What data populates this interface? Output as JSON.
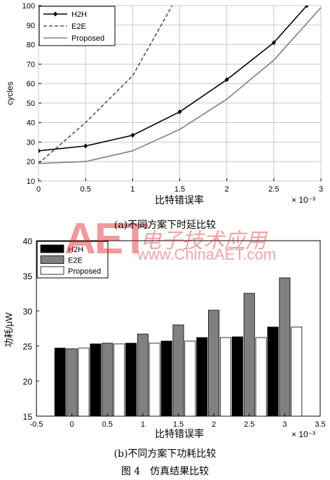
{
  "chart_data": [
    {
      "type": "line",
      "title": "",
      "xlabel": "比特错误率",
      "ylabel": "cycles",
      "xlim": [
        0,
        3
      ],
      "ylim": [
        10,
        100
      ],
      "x_ticks": [
        "0",
        "0.5",
        "1",
        "1.5",
        "2",
        "2.5",
        "3"
      ],
      "y_ticks": [
        "10",
        "20",
        "30",
        "40",
        "50",
        "60",
        "70",
        "80",
        "90",
        "100"
      ],
      "x_multiplier": "× 10⁻³",
      "grid": true,
      "legend_position": "top-left",
      "series": [
        {
          "name": "H2H",
          "style": "solid-diamond",
          "color": "#000000",
          "points": [
            [
              0,
              25.5
            ],
            [
              0.5,
              28
            ],
            [
              1,
              33.5
            ],
            [
              1.5,
              45.5
            ],
            [
              2,
              62
            ],
            [
              2.5,
              81
            ],
            [
              2.85,
              100
            ]
          ]
        },
        {
          "name": "E2E",
          "style": "dashed",
          "color": "#555555",
          "points": [
            [
              0,
              19
            ],
            [
              0.5,
              40
            ],
            [
              1,
              64
            ],
            [
              1.42,
              100
            ]
          ]
        },
        {
          "name": "Proposed",
          "style": "solid",
          "color": "#808080",
          "points": [
            [
              0,
              19
            ],
            [
              0.5,
              20
            ],
            [
              1,
              25.5
            ],
            [
              1.5,
              36.5
            ],
            [
              2,
              52
            ],
            [
              2.5,
              72
            ],
            [
              3,
              99
            ]
          ]
        }
      ],
      "caption": "(a)不同方案下时延比较"
    },
    {
      "type": "bar",
      "title": "",
      "xlabel": "比特错误率",
      "ylabel": "功耗/μW",
      "xlim": [
        -0.5,
        3.5
      ],
      "ylim": [
        15,
        40
      ],
      "x_ticks": [
        "-0.5",
        "0",
        "0.5",
        "1",
        "1.5",
        "2",
        "2.5",
        "3",
        "3.5"
      ],
      "y_ticks": [
        "15",
        "20",
        "25",
        "30",
        "35",
        "40"
      ],
      "x_multiplier": "× 10⁻³",
      "grid": false,
      "legend_position": "top-left",
      "categories": [
        0,
        0.5,
        1,
        1.5,
        2,
        2.5,
        3
      ],
      "series": [
        {
          "name": "H2H",
          "color": "#000000",
          "values": [
            24.7,
            25.3,
            25.4,
            25.7,
            26.2,
            26.3,
            27.7
          ]
        },
        {
          "name": "E2E",
          "color": "#808080",
          "values": [
            24.6,
            25.4,
            26.7,
            28.0,
            30.1,
            32.5,
            34.7
          ]
        },
        {
          "name": "Proposed",
          "color": "#ffffff",
          "values": [
            24.7,
            25.3,
            25.4,
            25.7,
            26.2,
            26.2,
            27.7
          ]
        }
      ],
      "caption": "(b)不同方案下功耗比较"
    }
  ],
  "figure_caption": "图 4　仿真结果比较",
  "watermark": {
    "logo": "AET",
    "cn": "电子技术应用",
    "url": "www.ChinaAET.com",
    "color": "#e11f24"
  }
}
